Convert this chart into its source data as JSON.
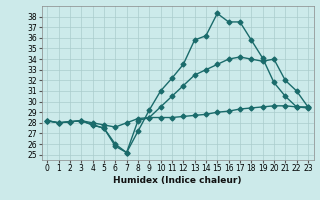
{
  "xlabel": "Humidex (Indice chaleur)",
  "background_color": "#cceaea",
  "grid_color": "#aacccc",
  "line_color": "#1a6b6b",
  "xlim": [
    -0.5,
    23.5
  ],
  "ylim": [
    24.5,
    39.0
  ],
  "yticks": [
    25,
    26,
    27,
    28,
    29,
    30,
    31,
    32,
    33,
    34,
    35,
    36,
    37,
    38
  ],
  "xticks": [
    0,
    1,
    2,
    3,
    4,
    5,
    6,
    7,
    8,
    9,
    10,
    11,
    12,
    13,
    14,
    15,
    16,
    17,
    18,
    19,
    20,
    21,
    22,
    23
  ],
  "line1_x": [
    0,
    1,
    2,
    3,
    4,
    5,
    6,
    7,
    8,
    9,
    10,
    11,
    12,
    13,
    14,
    15,
    16,
    17,
    18,
    19,
    20,
    21,
    22,
    23
  ],
  "line1_y": [
    28.2,
    28.0,
    28.1,
    28.2,
    27.8,
    27.5,
    26.0,
    25.2,
    28.2,
    28.5,
    28.5,
    28.5,
    28.6,
    28.7,
    28.8,
    29.0,
    29.1,
    29.3,
    29.4,
    29.5,
    29.6,
    29.6,
    29.5,
    29.4
  ],
  "line2_x": [
    0,
    1,
    2,
    3,
    4,
    5,
    6,
    7,
    8,
    9,
    10,
    11,
    12,
    13,
    14,
    15,
    16,
    17,
    18,
    19,
    20,
    21,
    22,
    23
  ],
  "line2_y": [
    28.2,
    28.0,
    28.1,
    28.2,
    28.0,
    27.8,
    27.6,
    28.0,
    28.4,
    28.5,
    29.5,
    30.5,
    31.5,
    32.5,
    33.0,
    33.5,
    34.0,
    34.2,
    34.0,
    33.8,
    34.0,
    32.0,
    31.0,
    29.5
  ],
  "line3_x": [
    0,
    1,
    2,
    3,
    4,
    5,
    6,
    7,
    8,
    9,
    10,
    11,
    12,
    13,
    14,
    15,
    16,
    17,
    18,
    19,
    20,
    21,
    22,
    23
  ],
  "line3_y": [
    28.2,
    28.0,
    28.1,
    28.2,
    27.8,
    27.5,
    25.8,
    25.2,
    27.2,
    29.2,
    31.0,
    32.2,
    33.5,
    35.8,
    36.2,
    38.3,
    37.5,
    37.5,
    35.8,
    34.1,
    31.8,
    30.5,
    29.5,
    29.5
  ],
  "marker": "D",
  "markersize": 2.5,
  "linewidth": 1.0
}
